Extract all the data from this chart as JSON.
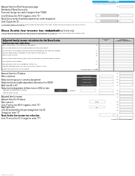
{
  "bg_color": "#ffffff",
  "title_bar_color": "#29ABE2",
  "title_bar_text": "Title Data",
  "protected_text": "Protected B when completed",
  "top_lines": [
    {
      "text": "Amount from line 69 of the previous page",
      "box_right": true,
      "line_no": "69"
    },
    {
      "text": "Residents of Nova Scotia only:",
      "box_right": false,
      "line_no": ""
    },
    {
      "text": "Provincial foreign tax credit (complete Form T2036)",
      "box_right": false,
      "line_no": ""
    },
    {
      "text": "Line 69 minus line 70 (if negative, enter \"0\")",
      "box_right": true,
      "line_no": "71"
    },
    {
      "text": "Nova Scotia research and development tax credit recaptured",
      "box_right": false,
      "line_no": ""
    },
    {
      "text": "Line 71 plus line 72",
      "box_right": true,
      "line_no": "73"
    }
  ],
  "note_text": "If you were both a resident of Nova Scotia at the end of the year, enter the amount from line 69 on line 76\nbelow and continue on line 54.",
  "section_title": "Nova Scotia low-income tax reduction",
  "section_subtitle": "(residents of Nova Scotia only)",
  "section_note": "If you had a spouse or common-law partner on December 31, 2020, you and your spouse or common-law\npartner need to decide who will claim the tax reduction for your family.",
  "table_header": "Adjusted family income calculation for the Nova Scotia\nlow-income tax reduction:",
  "col1_header": "Column 1\nYou",
  "col2_header": "Column 2\nYour spouse or\ncommon-law partner",
  "table_rows": [
    {
      "text": "Net income from line (23600) of the return",
      "lno": "36"
    },
    {
      "text": "Total of the universal child care benefit (UCCB) repayment",
      "lno": ""
    },
    {
      "text": "(line 21300 of the return) and the registered disability savings plan (RDSP)",
      "lno": "37"
    },
    {
      "text": "income repayment (included on line 23200 of the return)",
      "lno": "38"
    },
    {
      "text": "Line 37 plus line 38",
      "lno": "39"
    },
    {
      "text": "Total of the UCCB income (line 11700 of the return) and the RDSP income",
      "lno": ""
    },
    {
      "text": "(line 12500 of the return)",
      "lno": "37"
    },
    {
      "text": "Line 39 minus line 37 (if negative, enter \"0\")",
      "lno": "40"
    },
    {
      "text": "Add the amounts from line 36 of columns 1 and 2, if any.",
      "lno": ""
    },
    {
      "text": "Enter the amount on line 4* below",
      "lno": "35",
      "right_label": "Adjusted family income"
    }
  ],
  "lower_rows": [
    {
      "text": "Amount from line 35 above",
      "note": "",
      "lno": "35"
    },
    {
      "text": "Basic reduction",
      "note": "Claim 2000",
      "lno": "41"
    },
    {
      "text": "Reduction for spouse or common-law partner",
      "note": "Claim 2000",
      "lno": "42"
    },
    {
      "text": "Reduction for an eligible dependent claimed on line 58160",
      "note": "Claim 2000",
      "lno": "43"
    },
    {
      "text": "Add lines 41 to 43",
      "note": "maximum 2000",
      "lno": "44"
    }
  ],
  "dep_header": "Reduction for dependent children born in 2002 or later:",
  "dep_row1": "Number of dependent children",
  "dep_note": "10000",
  "dep_mult": "x ($180) =",
  "dep_lno": "45",
  "dep_row2": "Line 44 plus line 45",
  "dep_row2_lno": "46",
  "bottom_rows": [
    {
      "text": "Adjusted family income",
      "lno": "47",
      "val": ""
    },
    {
      "text": "Amount from line 35 above",
      "lno": "",
      "val": ""
    },
    {
      "text": "Basic amount",
      "lno": "48",
      "val": "1,800"
    },
    {
      "text": "Line 4* minus line 48 (if negative, enter \"0\")",
      "lno": "49",
      "val": ""
    },
    {
      "text": "Applicable rate",
      "lno": "50",
      "val": "5%"
    },
    {
      "text": "Line 49 multiplied by the percentage from line 50",
      "lno": "51",
      "val": ""
    },
    {
      "text": "If negative, enter \"0\"",
      "lno": "",
      "val": ""
    },
    {
      "text": "Nova Scotia low-income tax reduction",
      "lno": "52",
      "val": "",
      "bold": true
    },
    {
      "text": "Line 73 minus line 52 (if negative, enter \"0\")",
      "lno": "53",
      "val": ""
    }
  ],
  "footer": "Continue on the next page.",
  "form_number": "9403-C (21) (B)"
}
